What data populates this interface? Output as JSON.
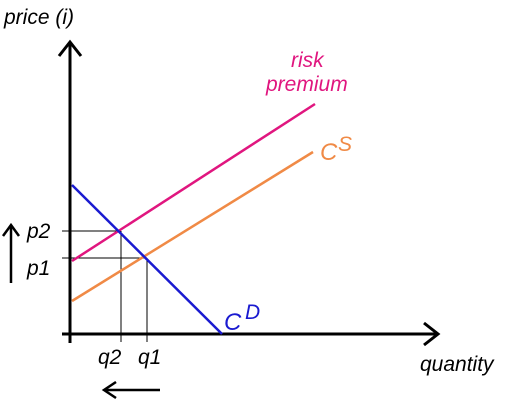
{
  "axes": {
    "y_label": "price (i)",
    "x_label": "quantity"
  },
  "curves": {
    "risk_premium": {
      "line1": "risk",
      "line2": "premium",
      "color": "#e0167f"
    },
    "supply": {
      "base": "C",
      "superscript": "S",
      "color": "#f08a46"
    },
    "demand": {
      "base": "C",
      "superscript": "D",
      "color": "#1a1ad0"
    }
  },
  "ticks": {
    "p2": "p2",
    "p1": "p1",
    "q2": "q2",
    "q1": "q1"
  },
  "arrows": {
    "price_direction": "up",
    "quantity_direction": "left"
  }
}
